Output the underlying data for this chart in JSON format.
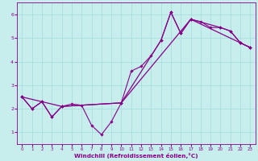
{
  "xlabel": "Windchill (Refroidissement éolien,°C)",
  "xlim": [
    -0.5,
    23.5
  ],
  "ylim": [
    0.5,
    6.5
  ],
  "yticks": [
    1,
    2,
    3,
    4,
    5,
    6
  ],
  "xticks": [
    0,
    1,
    2,
    3,
    4,
    5,
    6,
    7,
    8,
    9,
    10,
    11,
    12,
    13,
    14,
    15,
    16,
    17,
    18,
    19,
    20,
    21,
    22,
    23
  ],
  "bg_color": "#c8eded",
  "line_color": "#880088",
  "grid_color": "#a8dede",
  "line1_x": [
    0,
    1,
    2,
    3,
    4,
    5,
    6,
    7,
    8,
    9,
    10,
    11,
    12,
    13,
    14,
    15,
    16,
    17,
    18,
    19,
    20,
    21,
    22,
    23
  ],
  "line1_y": [
    2.5,
    2.0,
    2.3,
    1.65,
    2.1,
    2.2,
    2.15,
    1.3,
    0.9,
    1.45,
    2.25,
    3.6,
    3.8,
    4.25,
    4.9,
    6.1,
    5.2,
    5.8,
    5.7,
    5.45,
    5.45,
    5.3,
    4.8,
    4.6
  ],
  "line2_x": [
    0,
    1,
    2,
    3,
    4,
    10,
    14,
    15,
    16,
    17,
    20,
    21,
    22,
    23
  ],
  "line2_y": [
    2.5,
    2.0,
    2.3,
    1.65,
    2.1,
    2.25,
    4.9,
    6.1,
    5.2,
    5.8,
    5.45,
    5.3,
    4.8,
    4.6
  ],
  "line3_x": [
    0,
    4,
    10,
    17,
    22,
    23
  ],
  "line3_y": [
    2.5,
    2.1,
    2.25,
    5.8,
    4.8,
    4.6
  ]
}
